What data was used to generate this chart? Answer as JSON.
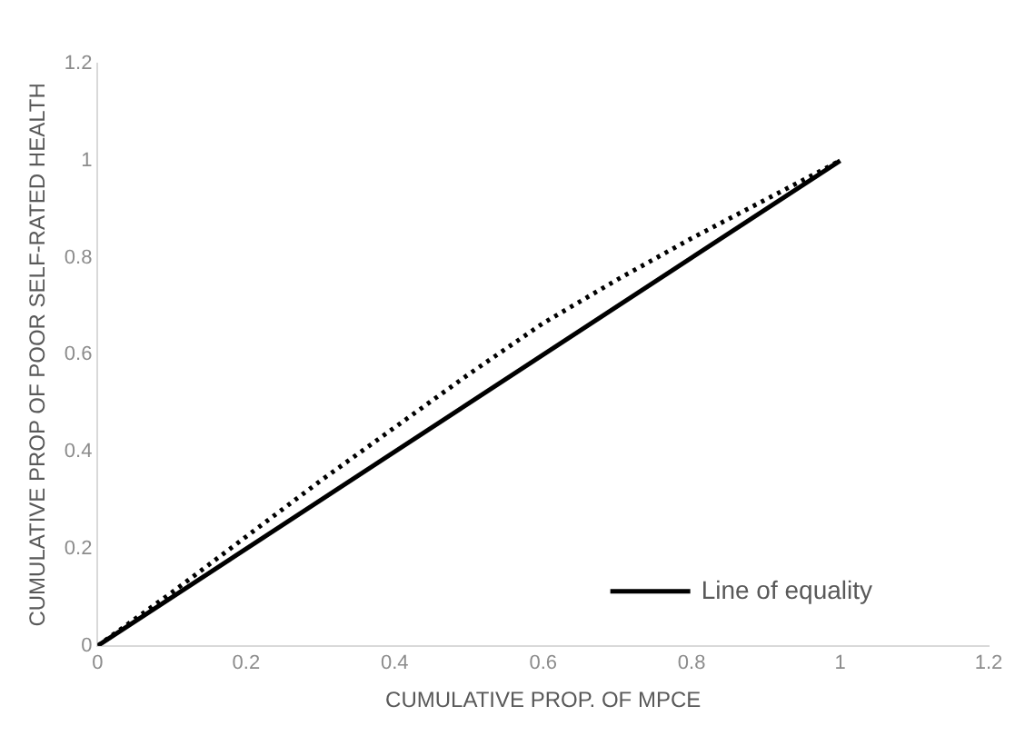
{
  "chart_data": {
    "type": "line",
    "xlabel": "CUMULATIVE PROP. OF MPCE",
    "ylabel": "CUMULATIVE PROP OF POOR SELF-RATED HEALTH",
    "xlim": [
      0,
      1.2
    ],
    "xticks": [
      0,
      0.2,
      0.4,
      0.6,
      0.8,
      1,
      1.2
    ],
    "ylim": [
      0,
      1.2
    ],
    "yticks": [
      0,
      0.2,
      0.4,
      0.6,
      0.8,
      1,
      1.2
    ],
    "series": [
      {
        "color": "#000000",
        "line_style": "dotted",
        "x": [
          0,
          0.1,
          0.2,
          0.3,
          0.4,
          0.5,
          0.6,
          0.7,
          0.8,
          0.9,
          1
        ],
        "values": [
          0,
          0.11,
          0.225,
          0.34,
          0.45,
          0.56,
          0.665,
          0.755,
          0.84,
          0.92,
          1
        ]
      },
      {
        "name": "Line of equality",
        "color": "#000000",
        "line_style": "solid",
        "x": [
          0,
          1
        ],
        "values": [
          0,
          1
        ]
      }
    ],
    "grid": false,
    "legend": "bottom right",
    "marker": "none"
  }
}
